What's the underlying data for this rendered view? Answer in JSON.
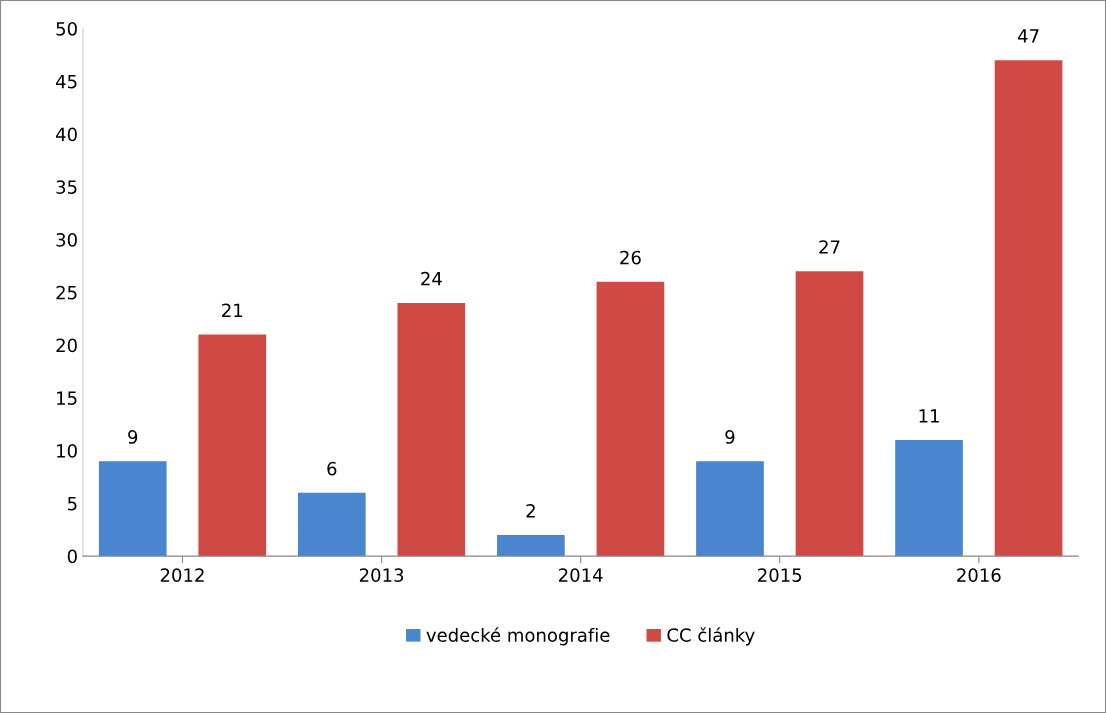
{
  "chart_data": {
    "type": "bar",
    "categories": [
      "2012",
      "2013",
      "2014",
      "2015",
      "2016"
    ],
    "series": [
      {
        "name": "vedecké monografie",
        "color": "#4a86d0",
        "values": [
          9,
          6,
          2,
          9,
          11
        ]
      },
      {
        "name": "CC články",
        "color": "#d04a45",
        "values": [
          21,
          24,
          26,
          27,
          47
        ]
      }
    ],
    "ylim": [
      0,
      50
    ],
    "yticks": [
      0,
      5,
      10,
      15,
      20,
      25,
      30,
      35,
      40,
      45,
      50
    ],
    "data_labels": true,
    "grid": false,
    "legend": "bottom"
  }
}
